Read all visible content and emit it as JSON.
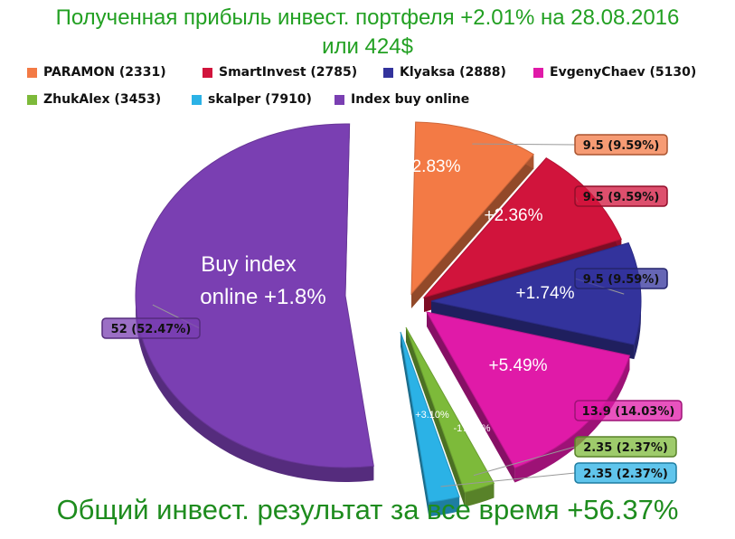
{
  "title": {
    "line1": "Полученная прибыль инвест. портфеля +2.01% на 28.08.2016",
    "line2": "или 424$"
  },
  "footer": "Общий инвест. результат за все время +56.37%",
  "chart_data": {
    "type": "pie",
    "title": "Полученная прибыль инвест. портфеля +2.01% на 28.08.2016 или 424$",
    "legend_position": "top",
    "style": "3d-exploded",
    "series": [
      {
        "name": "PARAMON (2331)",
        "value": 9.5,
        "percent_label": "9.5 (9.59%)",
        "slice_text": "+2.83%",
        "color": "#f37a45"
      },
      {
        "name": "SmartInvest (2785)",
        "value": 9.5,
        "percent_label": "9.5 (9.59%)",
        "slice_text": "+2.36%",
        "color": "#d1143c"
      },
      {
        "name": "Klyaksa (2888)",
        "value": 9.5,
        "percent_label": "9.5 (9.59%)",
        "slice_text": "+1.74%",
        "color": "#33339c"
      },
      {
        "name": "EvgenyChaev (5130)",
        "value": 13.9,
        "percent_label": "13.9 (14.03%)",
        "slice_text": "+5.49%",
        "color": "#e01aa8"
      },
      {
        "name": "ZhukAlex (3453)",
        "value": 2.35,
        "percent_label": "2.35 (2.37%)",
        "slice_text": "-17.84%",
        "color": "#7dba3a"
      },
      {
        "name": "skalper (7910)",
        "value": 2.35,
        "percent_label": "2.35 (2.37%)",
        "slice_text": "+3.10%",
        "color": "#2bb2e6"
      },
      {
        "name": "Index buy online",
        "value": 52,
        "percent_label": "52 (52.47%)",
        "slice_text": "Buy index online +1.8%",
        "color": "#7a3fb2"
      }
    ]
  }
}
